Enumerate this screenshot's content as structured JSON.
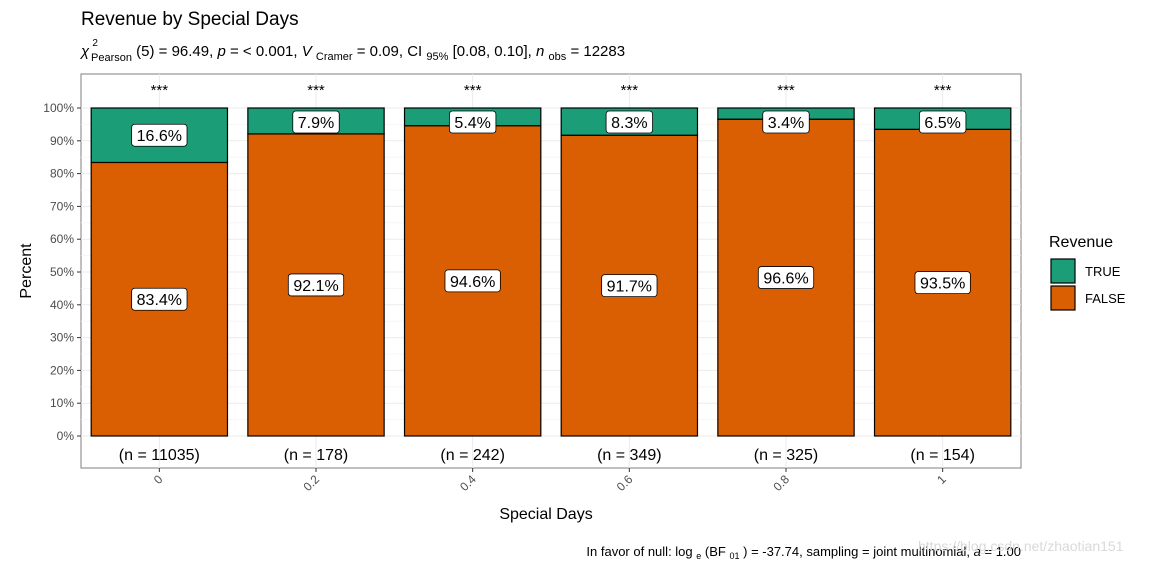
{
  "chart_data": {
    "type": "bar",
    "stacked": true,
    "title": "Revenue by Special Days",
    "subtitle": {
      "chi_symbol": "χ",
      "chi_sup": "2",
      "chi_sub": "Pearson",
      "df_text": "(5) = 96.49, ",
      "p_label": "p",
      "p_text": " = < 0.001, ",
      "v_label": "V",
      "v_sub": "Cramer",
      "v_text": " = 0.09, CI",
      "ci_sub": "95%",
      "ci_text": " [0.08, 0.10], ",
      "n_label": "n",
      "n_sub": "obs",
      "n_text": " = 12283"
    },
    "xlabel": "Special Days",
    "ylabel": "Percent",
    "ylim": [
      0,
      100
    ],
    "y_ticks": [
      "0%",
      "10%",
      "20%",
      "30%",
      "40%",
      "50%",
      "60%",
      "70%",
      "80%",
      "90%",
      "100%"
    ],
    "categories": [
      "0",
      "0.2",
      "0.4",
      "0.6",
      "0.8",
      "1"
    ],
    "series": [
      {
        "name": "FALSE",
        "color": "#d95f02",
        "values": [
          83.4,
          92.1,
          94.6,
          91.7,
          96.6,
          93.5
        ],
        "labels": [
          "83.4%",
          "92.1%",
          "94.6%",
          "91.7%",
          "96.6%",
          "93.5%"
        ]
      },
      {
        "name": "TRUE",
        "color": "#1b9e77",
        "values": [
          16.6,
          7.9,
          5.4,
          8.3,
          3.4,
          6.5
        ],
        "labels": [
          "16.6%",
          "7.9%",
          "5.4%",
          "8.3%",
          "3.4%",
          "6.5%"
        ]
      }
    ],
    "significance": [
      "***",
      "***",
      "***",
      "***",
      "***",
      "***"
    ],
    "counts": [
      "(n = 11035)",
      "(n = 178)",
      "(n = 242)",
      "(n = 349)",
      "(n = 325)",
      "(n = 154)"
    ],
    "legend": {
      "title": "Revenue",
      "position": "right",
      "entries": [
        {
          "label": "TRUE",
          "color": "#1b9e77"
        },
        {
          "label": "FALSE",
          "color": "#d95f02"
        }
      ]
    },
    "caption": {
      "prefix": "In favor of null: log",
      "log_sub": "e",
      "bf_text": "(BF",
      "bf_sub": "01",
      "rest": ") = -37.74, sampling = joint multinomial, ",
      "a_label": "a",
      "a_text": " = 1.00"
    },
    "grid": true
  },
  "watermark": "https://blog.csdn.net/zhaotian151"
}
